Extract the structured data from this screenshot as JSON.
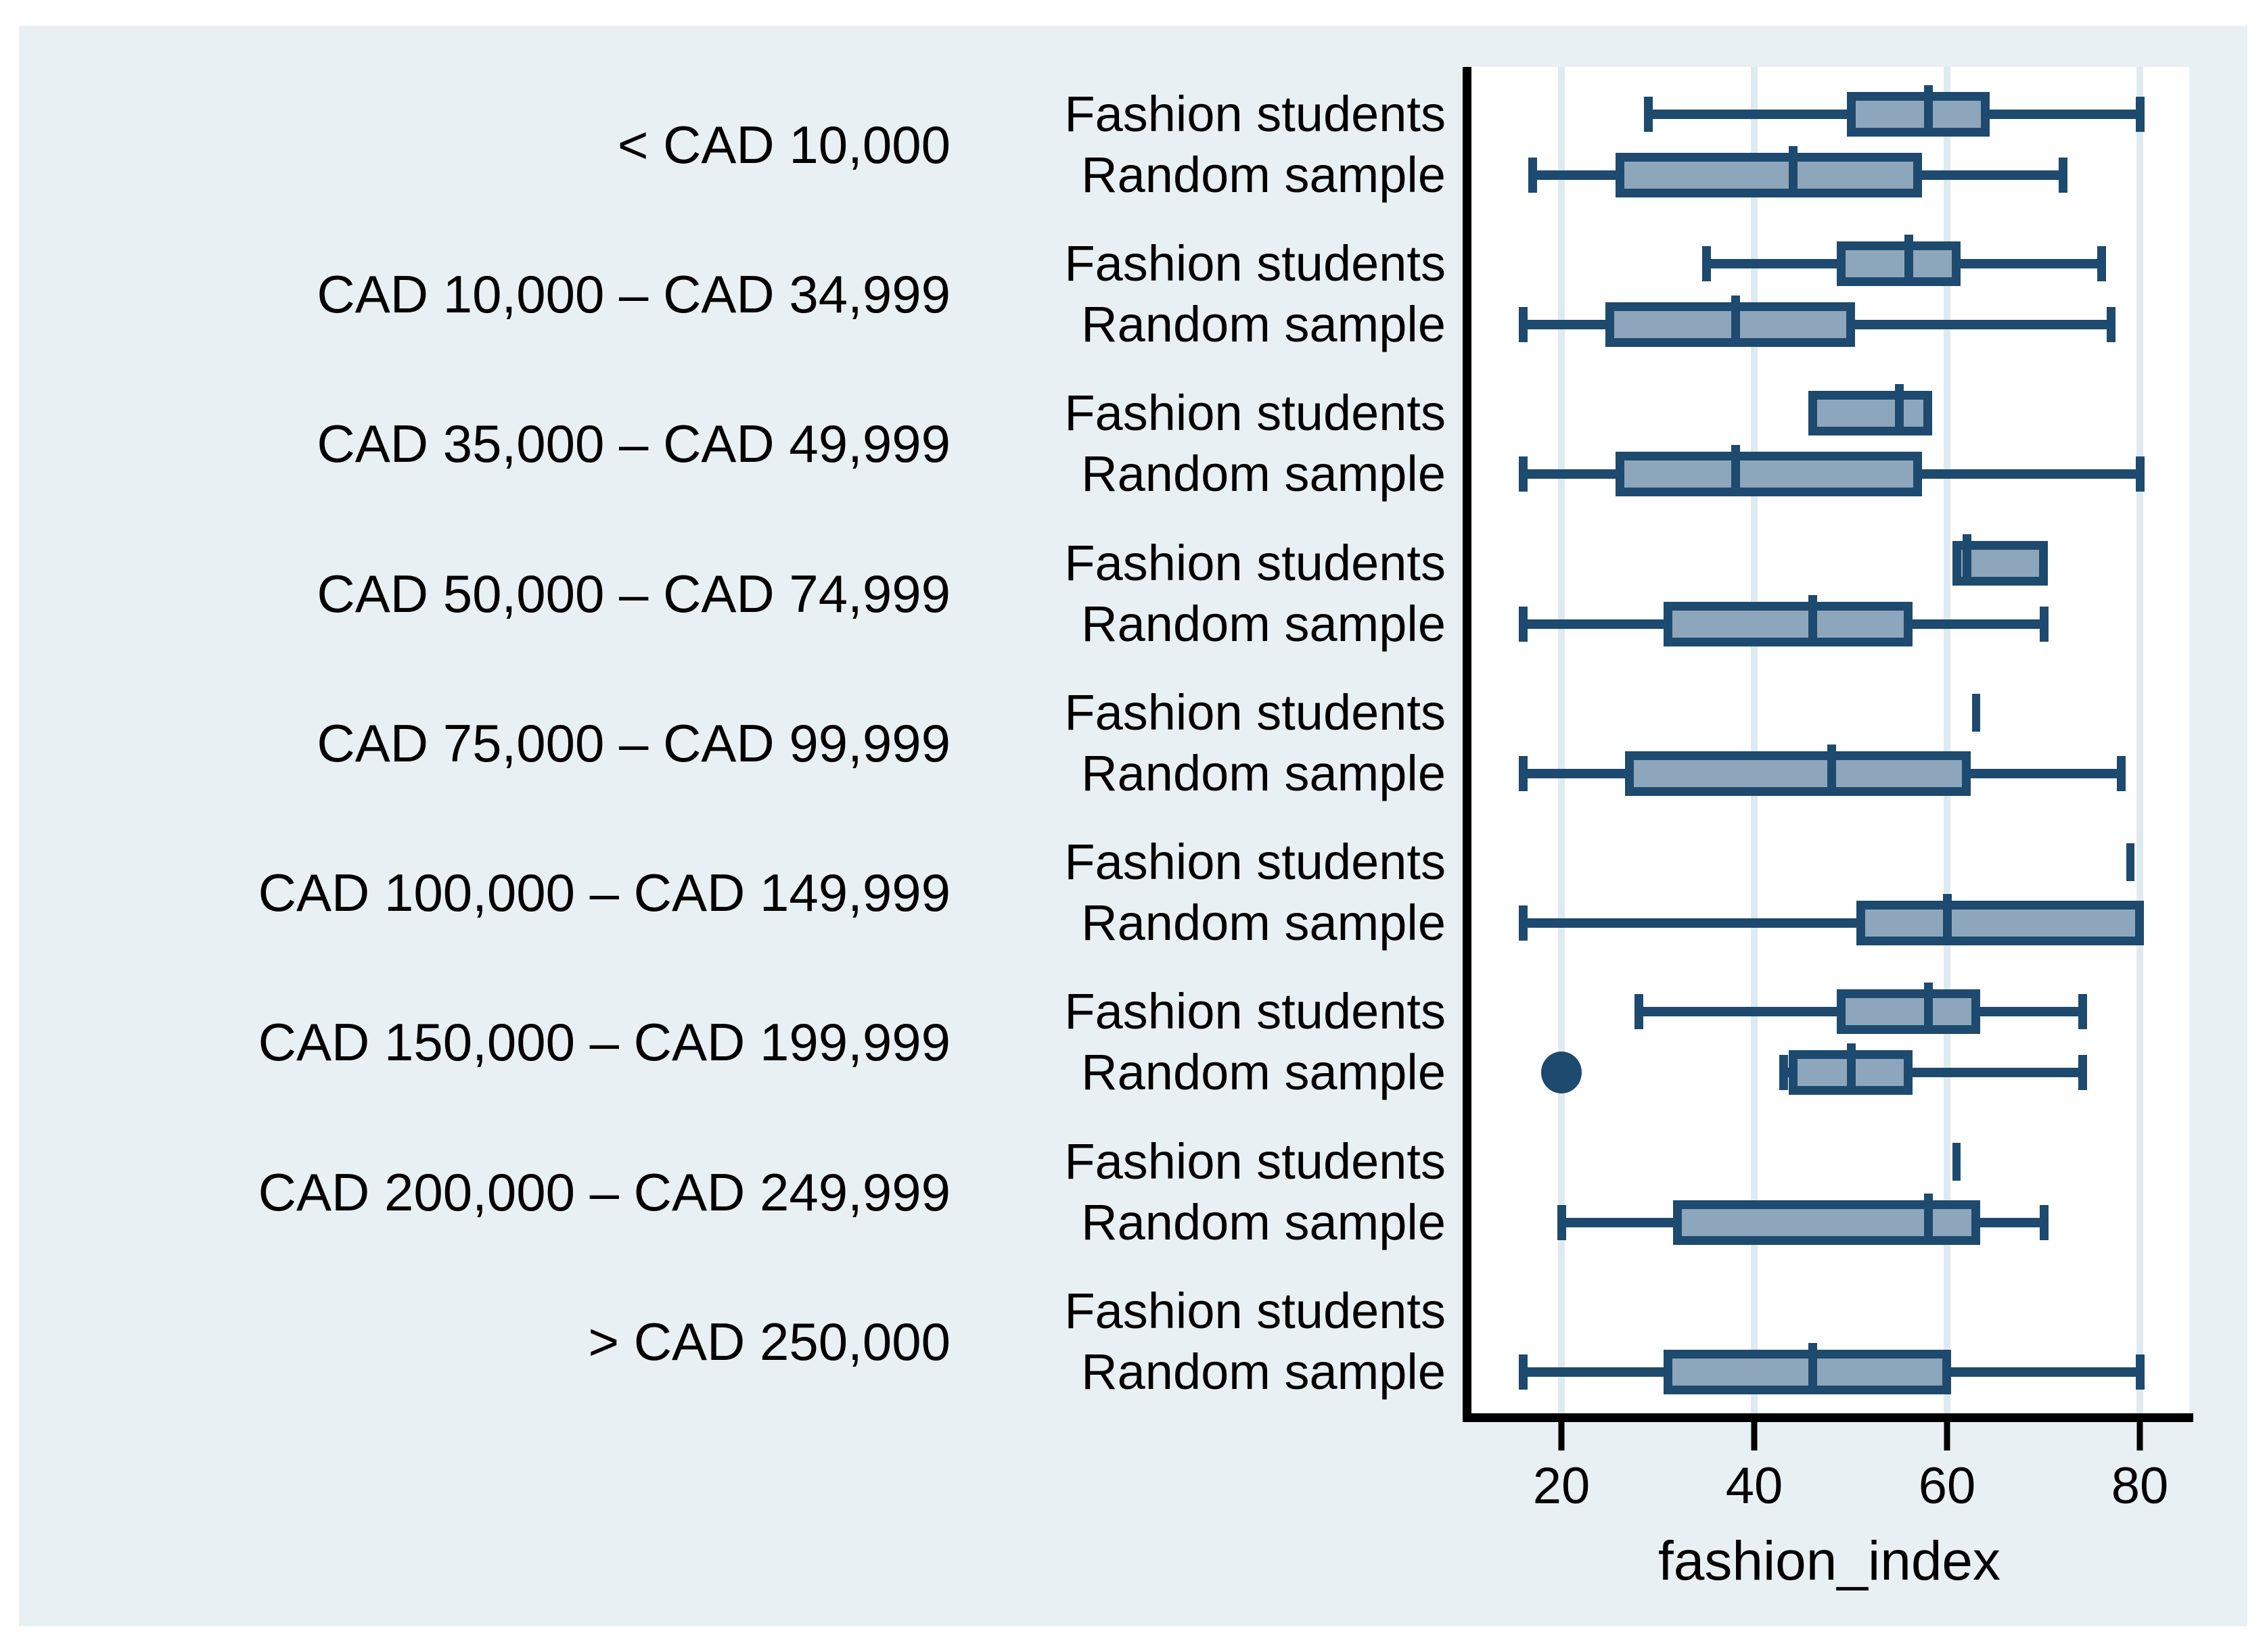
{
  "figure": {
    "background": "#ffffff",
    "canvas_background": "#e9f0f3",
    "plot_background": "#ffffff",
    "grid_color": "#dfeaf0",
    "box_fill_color": "#8da6bb",
    "box_stroke_color": "#1d4a6e",
    "axis_color": "#000000"
  },
  "chart_data": {
    "type": "boxplot-horizontal",
    "title": "",
    "xlabel": "fashion_index",
    "x_ticks": [
      20,
      40,
      60,
      80
    ],
    "x_range": [
      10.5,
      85.1
    ],
    "grid": true,
    "group_names": [
      "Fashion students",
      "Random sample"
    ],
    "categories": [
      {
        "label": "< CAD 10,000",
        "series": [
          {
            "name": "Fashion students",
            "min": 29,
            "q1": 50,
            "median": 58,
            "q3": 64,
            "max": 80
          },
          {
            "name": "Random sample",
            "min": 17,
            "q1": 26,
            "median": 44,
            "q3": 57,
            "max": 72
          }
        ]
      },
      {
        "label": "CAD 10,000 – CAD 34,999",
        "series": [
          {
            "name": "Fashion students",
            "min": 35,
            "q1": 49,
            "median": 56,
            "q3": 61,
            "max": 76
          },
          {
            "name": "Random sample",
            "min": 16,
            "q1": 25,
            "median": 38,
            "q3": 50,
            "max": 77
          }
        ]
      },
      {
        "label": "CAD 35,000 – CAD 49,999",
        "series": [
          {
            "name": "Fashion students",
            "min": 46,
            "q1": 46,
            "median": 55,
            "q3": 58,
            "max": 58
          },
          {
            "name": "Random sample",
            "min": 16,
            "q1": 26,
            "median": 38,
            "q3": 57,
            "max": 80
          }
        ]
      },
      {
        "label": "CAD 50,000 – CAD 74,999",
        "series": [
          {
            "name": "Fashion students",
            "min": 61,
            "q1": 61,
            "median": 62,
            "q3": 70,
            "max": 70
          },
          {
            "name": "Random sample",
            "min": 16,
            "q1": 31,
            "median": 46,
            "q3": 56,
            "max": 70
          }
        ]
      },
      {
        "label": "CAD 75,000 – CAD 99,999",
        "series": [
          {
            "name": "Fashion students",
            "single_value": 63
          },
          {
            "name": "Random sample",
            "min": 16,
            "q1": 27,
            "median": 48,
            "q3": 62,
            "max": 78
          }
        ]
      },
      {
        "label": "CAD 100,000 – CAD 149,999",
        "series": [
          {
            "name": "Fashion students",
            "single_value": 79
          },
          {
            "name": "Random sample",
            "min": 16,
            "q1": 51,
            "median": 60,
            "q3": 80,
            "max": 80
          }
        ]
      },
      {
        "label": "CAD 150,000 – CAD 199,999",
        "series": [
          {
            "name": "Fashion students",
            "min": 28,
            "q1": 49,
            "median": 58,
            "q3": 63,
            "max": 74
          },
          {
            "name": "Random sample",
            "min": 43,
            "q1": 44,
            "median": 50,
            "q3": 56,
            "max": 74,
            "outliers": [
              20
            ]
          }
        ]
      },
      {
        "label": "CAD 200,000 – CAD 249,999",
        "series": [
          {
            "name": "Fashion students",
            "single_value": 61
          },
          {
            "name": "Random sample",
            "min": 20,
            "q1": 32,
            "median": 58,
            "q3": 63,
            "max": 70
          }
        ]
      },
      {
        "label": "> CAD 250,000",
        "series": [
          {
            "name": "Fashion students",
            "empty": true
          },
          {
            "name": "Random sample",
            "min": 16,
            "q1": 31,
            "median": 46,
            "q3": 60,
            "max": 80
          }
        ]
      }
    ]
  }
}
